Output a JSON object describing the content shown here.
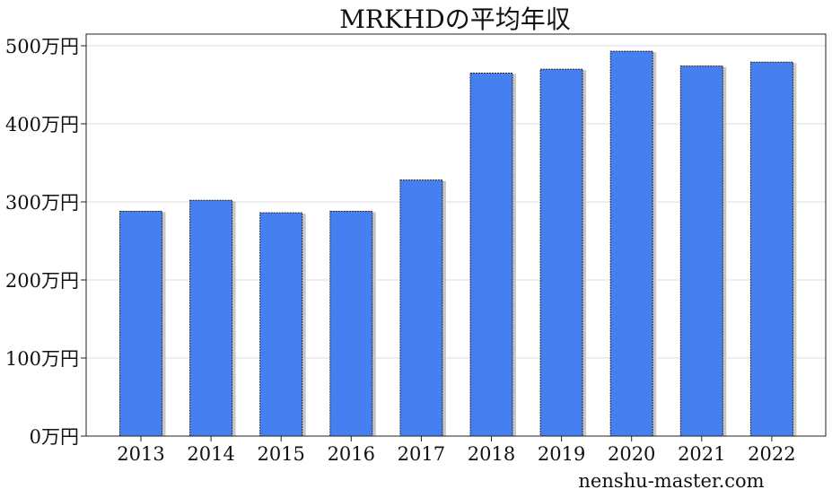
{
  "chart_data": {
    "type": "bar",
    "title": "MRKHDの平均年収",
    "categories": [
      "2013",
      "2014",
      "2015",
      "2016",
      "2017",
      "2018",
      "2019",
      "2020",
      "2021",
      "2022"
    ],
    "values": [
      288,
      302,
      286,
      288,
      328,
      465,
      470,
      493,
      474,
      479
    ],
    "y_unit_suffix": "万円",
    "yticks": [
      0,
      100,
      200,
      300,
      400,
      500
    ],
    "ytick_labels": [
      "0万円",
      "100万円",
      "200万円",
      "300万円",
      "400万円",
      "500万円"
    ],
    "ylim": [
      0,
      500
    ],
    "grid": true,
    "bar_color": "#4680f0",
    "bar_edge_color": "#222222",
    "shadow_color": "#c8c8c8"
  },
  "watermark": "nenshu-master.com"
}
